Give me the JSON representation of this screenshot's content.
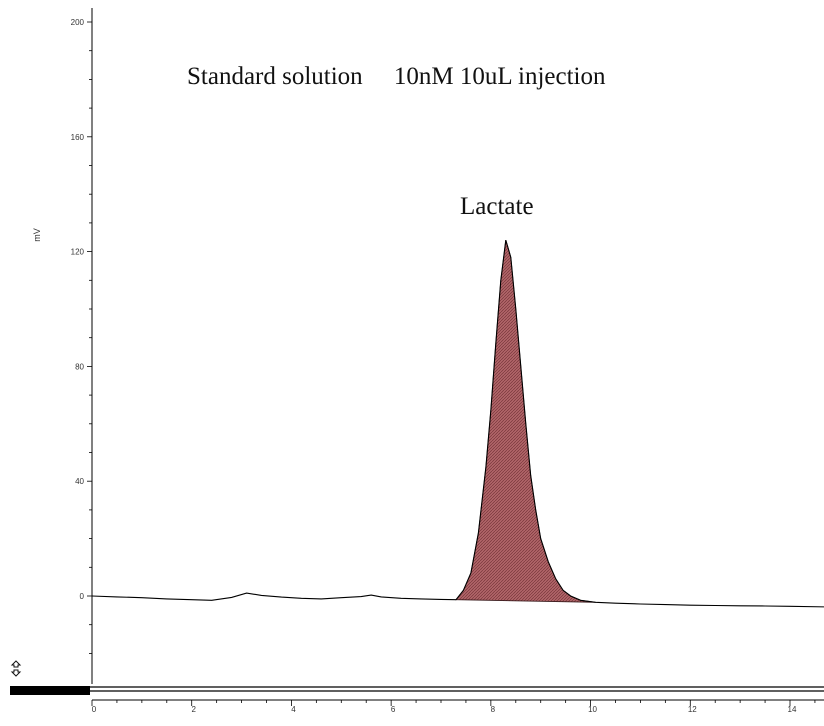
{
  "chart_data": {
    "type": "area",
    "xlabel": "",
    "ylabel": "mV",
    "xlim": [
      0,
      14.7
    ],
    "ylim": [
      -25,
      200
    ],
    "x_ticks": [
      0,
      2,
      4,
      6,
      8,
      10,
      12,
      14
    ],
    "y_ticks": [
      0,
      40,
      80,
      120,
      160,
      200
    ],
    "annotations": {
      "title": "Standard solution　 10nM 10uL injection",
      "peak_label": "Lactate"
    },
    "peak": {
      "name": "Lactate",
      "retention_time": 8.3,
      "height": 124,
      "start": 7.3,
      "end": 10.1,
      "fill_color": "#b06468"
    },
    "series": [
      {
        "values_x": [
          0,
          0.5,
          1,
          1.5,
          2,
          2.4,
          2.8,
          3.1,
          3.4,
          3.8,
          4.2,
          4.6,
          5,
          5.4,
          5.6,
          5.8,
          6.2,
          6.6,
          7,
          7.3,
          7.45,
          7.6,
          7.75,
          7.9,
          8.0,
          8.1,
          8.2,
          8.3,
          8.4,
          8.5,
          8.6,
          8.7,
          8.8,
          8.9,
          9.0,
          9.15,
          9.3,
          9.45,
          9.6,
          9.8,
          10.1,
          10.5,
          11,
          11.5,
          12,
          12.5,
          13,
          13.5,
          14,
          14.7
        ],
        "values_y": [
          0,
          -0.3,
          -0.6,
          -1,
          -1.3,
          -1.5,
          -0.5,
          1,
          0.2,
          -0.4,
          -0.8,
          -1,
          -0.6,
          -0.2,
          0.3,
          -0.3,
          -0.8,
          -1,
          -1.2,
          -1.3,
          2,
          8,
          22,
          45,
          65,
          88,
          110,
          124,
          118,
          100,
          80,
          60,
          42,
          30,
          20,
          12,
          6,
          2,
          0,
          -1.5,
          -2.2,
          -2.5,
          -2.8,
          -3,
          -3.2,
          -3.3,
          -3.4,
          -3.5,
          -3.6,
          -3.8
        ],
        "color": "#000000"
      }
    ]
  }
}
